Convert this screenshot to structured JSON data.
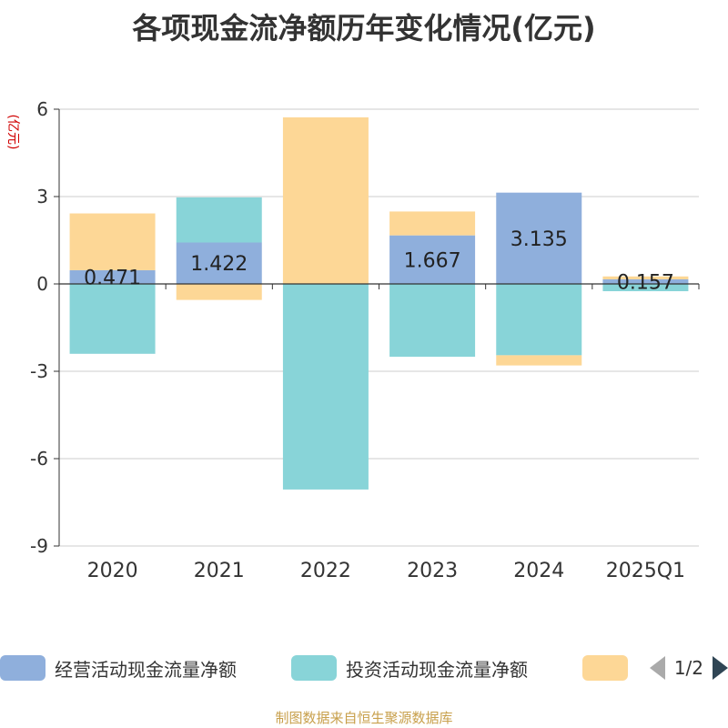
{
  "title": "各项现金流净额历年变化情况(亿元)",
  "source": "制图数据来自恒生聚源数据库",
  "legend": {
    "items": [
      {
        "label": "经营活动现金流量净额",
        "color": "#8fafdc"
      },
      {
        "label": "投资活动现金流量净额",
        "color": "#88d4d8"
      },
      {
        "label": "",
        "color": "#fdd796"
      }
    ],
    "page_text": "1/2"
  },
  "chart_data": {
    "type": "bar",
    "stacked": true,
    "categories": [
      "2020",
      "2021",
      "2022",
      "2023",
      "2024",
      "2025Q1"
    ],
    "ylabel": "(亿元)",
    "ylim": [
      -9,
      6
    ],
    "yticks": [
      6,
      3,
      0,
      -3,
      -6,
      -9
    ],
    "grid": true,
    "legend_position": "bottom",
    "series": [
      {
        "name": "经营活动现金流量净额",
        "color": "#8fafdc",
        "values": [
          0.471,
          1.422,
          -0.01,
          1.667,
          3.135,
          0.157
        ],
        "labels": [
          "0.471",
          "1.422",
          "",
          "1.667",
          "3.135",
          "0.157"
        ]
      },
      {
        "name": "投资活动现金流量净额",
        "color": "#88d4d8",
        "values": [
          -2.4,
          1.55,
          -7.05,
          -2.5,
          -2.45,
          -0.25
        ]
      },
      {
        "name": "",
        "color": "#fdd796",
        "values": [
          1.95,
          -0.55,
          5.72,
          0.82,
          -0.35,
          0.1
        ]
      }
    ]
  }
}
